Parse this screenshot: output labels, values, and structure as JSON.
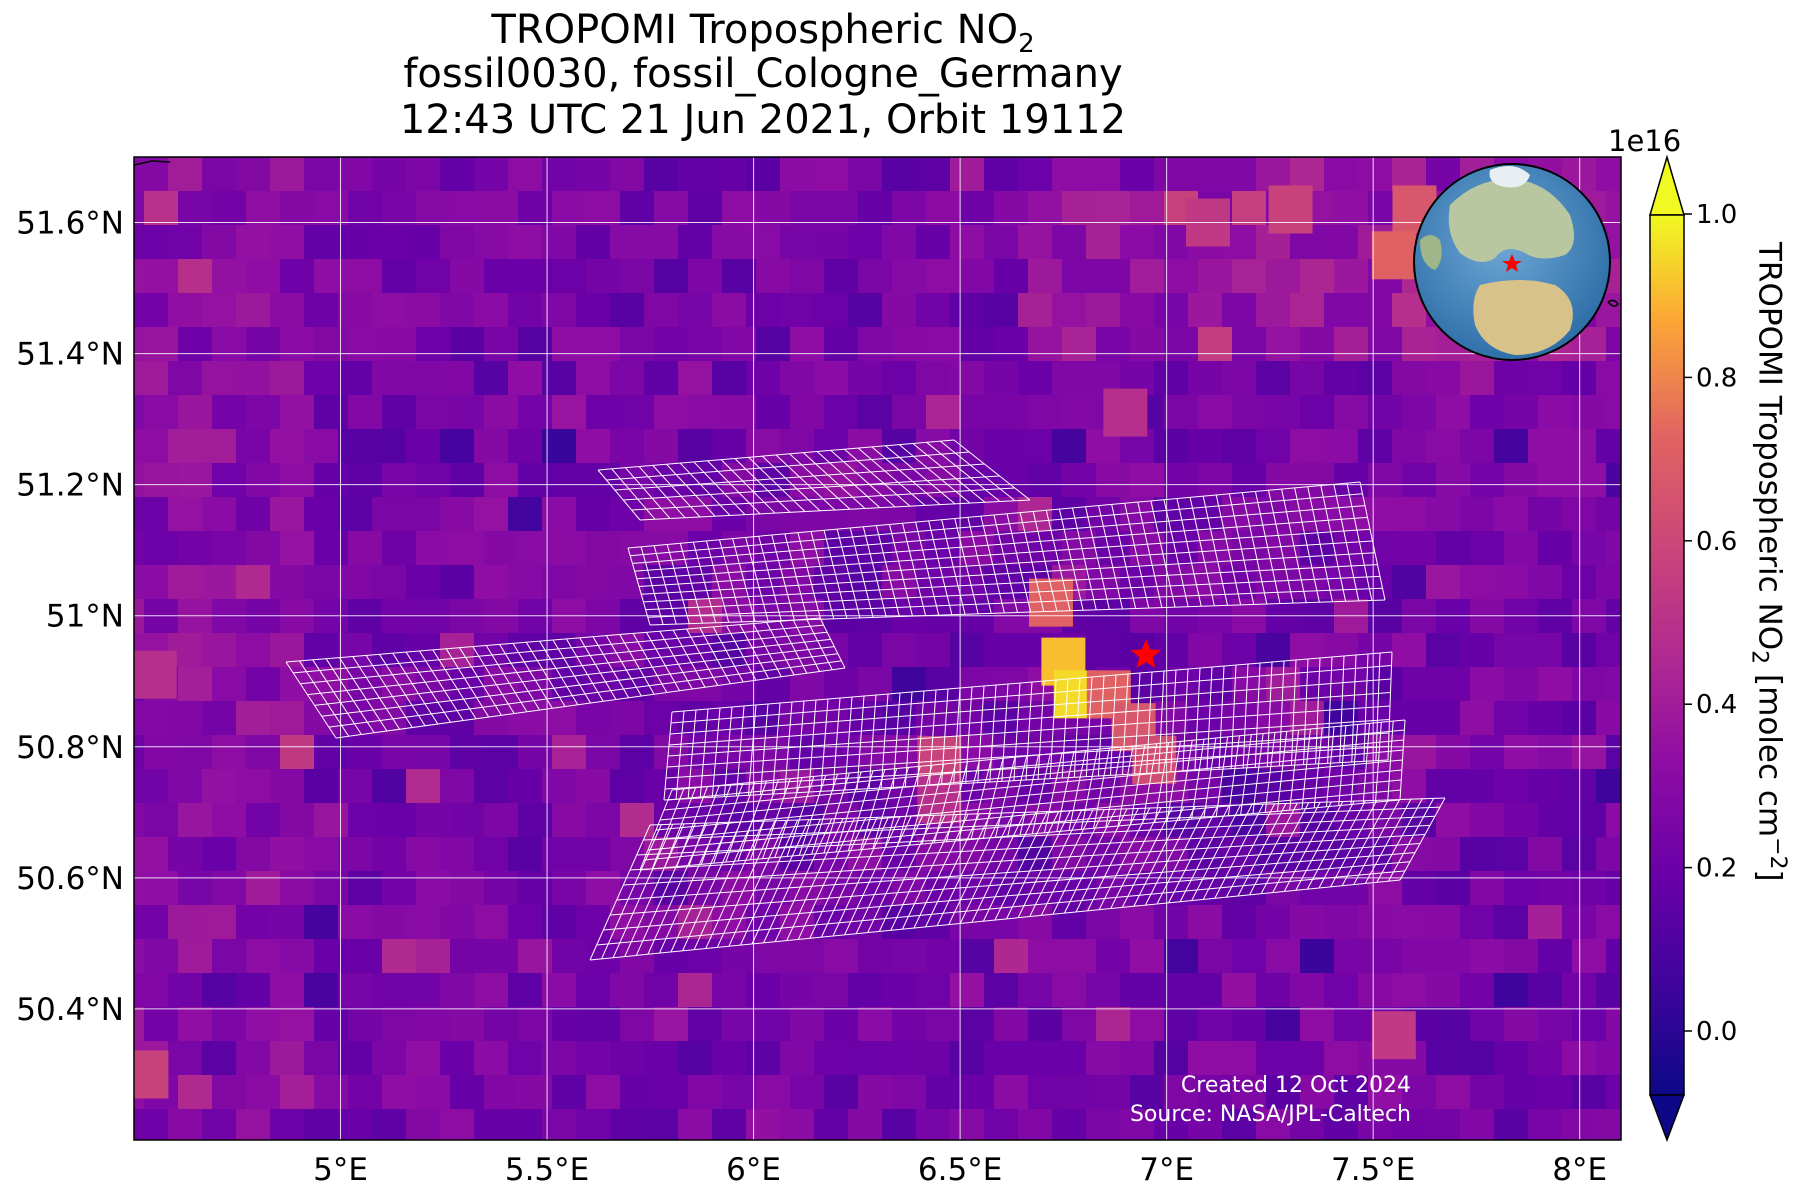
{
  "title": {
    "line1_main": "TROPOMI Tropospheric NO",
    "line1_sub": "2",
    "line2": "fossil0030, fossil_Cologne_Germany",
    "line3": "12:43 UTC 21 Jun 2021, Orbit 19112"
  },
  "map": {
    "lon_range": [
      4.5,
      8.1
    ],
    "lat_range": [
      50.2,
      51.7
    ],
    "lon_ticks": [
      5.0,
      5.5,
      6.0,
      6.5,
      7.0,
      7.5,
      8.0
    ],
    "lon_tick_labels": [
      "5°E",
      "5.5°E",
      "6°E",
      "6.5°E",
      "7°E",
      "7.5°E",
      "8°E"
    ],
    "lat_ticks": [
      51.6,
      51.4,
      51.2,
      51.0,
      50.8,
      50.6,
      50.4
    ],
    "lat_tick_labels": [
      "51.6°N",
      "51.4°N",
      "51.2°N",
      "51°N",
      "50.8°N",
      "50.6°N",
      "50.4°N"
    ],
    "grid": true,
    "target_marker": {
      "lon": 6.95,
      "lat": 50.94,
      "symbol": "star",
      "color": "#ff0000"
    },
    "hotspots_no2_1e16": [
      {
        "lon": 6.72,
        "lat": 51.02,
        "value": 0.75
      },
      {
        "lon": 6.75,
        "lat": 50.93,
        "value": 0.95
      },
      {
        "lon": 6.78,
        "lat": 50.88,
        "value": 1.0
      },
      {
        "lon": 6.86,
        "lat": 50.88,
        "value": 0.75
      },
      {
        "lon": 6.92,
        "lat": 50.83,
        "value": 0.7
      },
      {
        "lon": 6.97,
        "lat": 50.78,
        "value": 0.65
      },
      {
        "lon": 6.45,
        "lat": 50.78,
        "value": 0.6
      },
      {
        "lon": 6.45,
        "lat": 50.72,
        "value": 0.5
      },
      {
        "lon": 7.6,
        "lat": 51.62,
        "value": 0.7
      },
      {
        "lon": 7.55,
        "lat": 51.55,
        "value": 0.75
      },
      {
        "lon": 7.3,
        "lat": 51.62,
        "value": 0.6
      },
      {
        "lon": 7.1,
        "lat": 51.6,
        "value": 0.55
      },
      {
        "lon": 4.55,
        "lat": 50.91,
        "value": 0.5
      },
      {
        "lon": 4.53,
        "lat": 50.3,
        "value": 0.6
      },
      {
        "lon": 7.55,
        "lat": 50.36,
        "value": 0.55
      },
      {
        "lon": 6.9,
        "lat": 51.31,
        "value": 0.5
      }
    ]
  },
  "colorbar": {
    "colormap": "plasma",
    "min": -0.1,
    "max": 1.05,
    "ticks": [
      0.0,
      0.2,
      0.4,
      0.6,
      0.8,
      1.0
    ],
    "tick_labels": [
      "0.0",
      "0.2",
      "0.4",
      "0.6",
      "0.8",
      "1.0"
    ],
    "exponent_label": "1e16",
    "label_main": "TROPOMI Tropospheric NO",
    "label_sub": "2",
    "label_unit": " [molec cm",
    "label_unit_sup": "−2",
    "label_close": "]",
    "extend": "both"
  },
  "credits": {
    "created": "Created 12 Oct 2024",
    "source": "Source: NASA/JPL-Caltech"
  },
  "colors": {
    "grid": "#ffffff",
    "swath_outline": "#ffffff",
    "marker": "#ff0000"
  }
}
